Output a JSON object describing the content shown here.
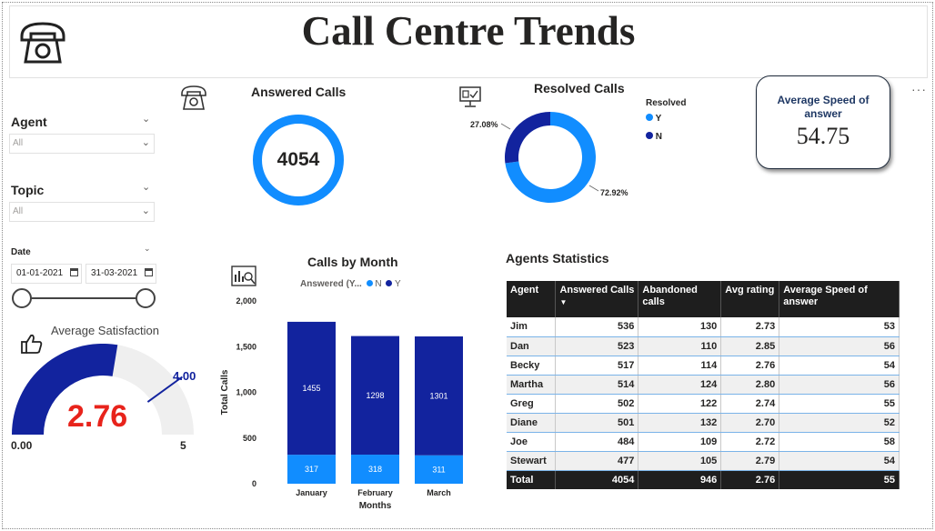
{
  "header": {
    "title": "Call Centre Trends"
  },
  "filters": {
    "agent": {
      "label": "Agent",
      "value": "All"
    },
    "topic": {
      "label": "Topic",
      "value": "All"
    },
    "date": {
      "label": "Date",
      "start": "01-01-2021",
      "end": "31-03-2021"
    }
  },
  "satisfaction": {
    "title": "Average Satisfaction",
    "value": "2.76",
    "min_label": "0.00",
    "max_label": "5",
    "target_label": "4.00",
    "value_num": 2.76,
    "max_num": 5,
    "target_num": 4.0
  },
  "answered": {
    "title": "Answered Calls",
    "value": "4054"
  },
  "resolved": {
    "title": "Resolved Calls",
    "legend_title": "Resolved",
    "legend": [
      "Y",
      "N"
    ],
    "y_label": "72.92%",
    "n_label": "27.08%",
    "y_pct": 72.92,
    "n_pct": 27.08,
    "colors": {
      "Y": "#118dff",
      "N": "#12239e"
    }
  },
  "speed": {
    "label": "Average Speed of answer",
    "value": "54.75"
  },
  "more_options": "···",
  "chart_data": {
    "type": "bar",
    "title": "Calls by Month",
    "legend_title": "Answered (Y...",
    "categories": [
      "January",
      "February",
      "March"
    ],
    "series": [
      {
        "name": "N",
        "values": [
          317,
          318,
          311
        ],
        "color": "#118dff"
      },
      {
        "name": "Y",
        "values": [
          1455,
          1298,
          1301
        ],
        "color": "#12239e"
      }
    ],
    "stacked": true,
    "xlabel": "Months",
    "ylabel": "Total Calls",
    "ylim": [
      0,
      2000
    ],
    "yticks": [
      "0",
      "500",
      "1,000",
      "1,500",
      "2,000"
    ],
    "ytick_values": [
      0,
      500,
      1000,
      1500,
      2000
    ],
    "grid": false,
    "legend_position": "top"
  },
  "agents_table": {
    "title": "Agents Statistics",
    "columns": [
      "Agent",
      "Answered Calls",
      "Abandoned calls",
      "Avg rating",
      "Average Speed of answer"
    ],
    "rows": [
      [
        "Jim",
        "536",
        "130",
        "2.73",
        "53"
      ],
      [
        "Dan",
        "523",
        "110",
        "2.85",
        "56"
      ],
      [
        "Becky",
        "517",
        "114",
        "2.76",
        "54"
      ],
      [
        "Martha",
        "514",
        "124",
        "2.80",
        "56"
      ],
      [
        "Greg",
        "502",
        "122",
        "2.74",
        "55"
      ],
      [
        "Diane",
        "501",
        "132",
        "2.70",
        "52"
      ],
      [
        "Joe",
        "484",
        "109",
        "2.72",
        "58"
      ],
      [
        "Stewart",
        "477",
        "105",
        "2.79",
        "54"
      ]
    ],
    "total": [
      "Total",
      "4054",
      "946",
      "2.76",
      "55"
    ]
  },
  "icons": [
    "phone-icon",
    "phone-small-icon",
    "monitor-check-icon",
    "chart-search-icon",
    "thumbs-up-icon",
    "chevron-down-icon",
    "calendar-icon"
  ]
}
